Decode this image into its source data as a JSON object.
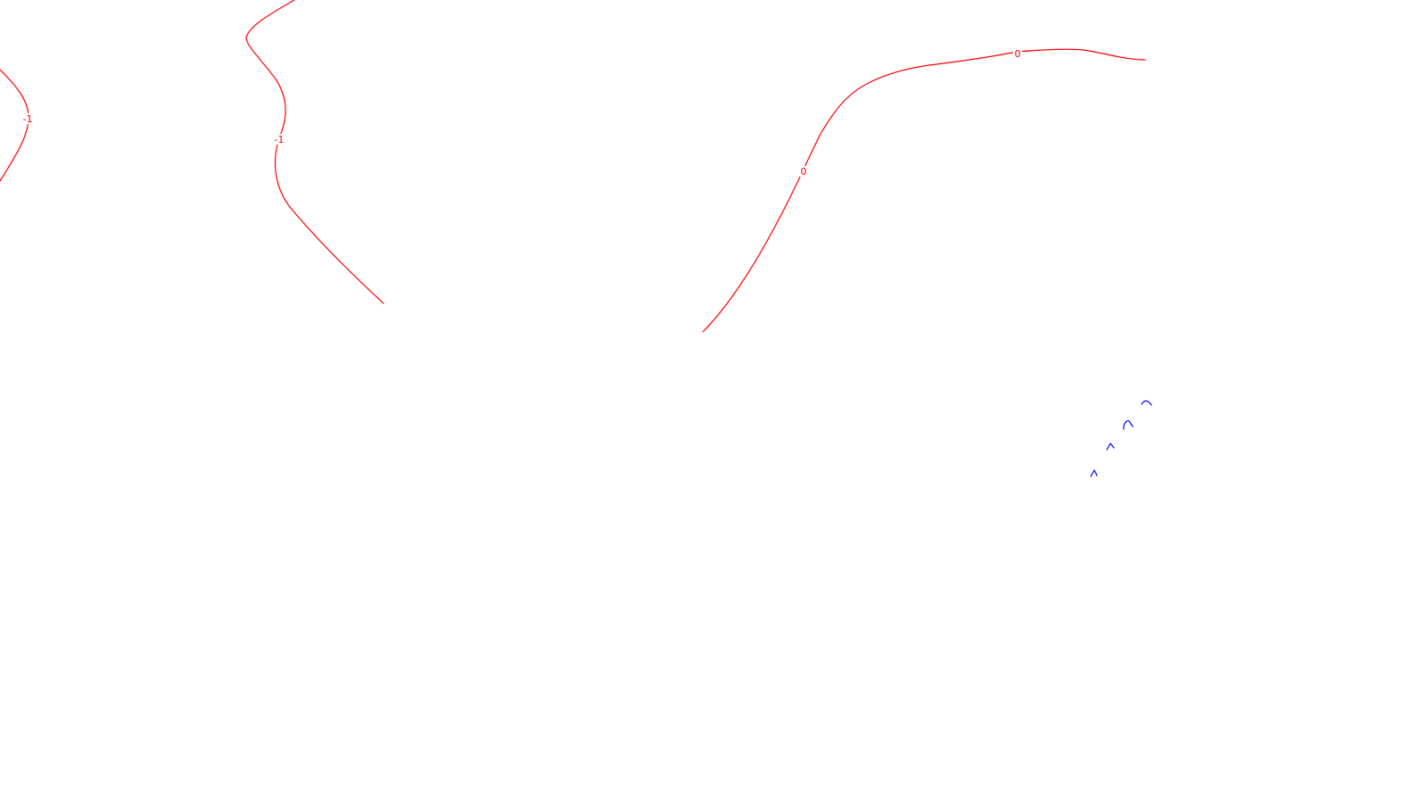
{
  "map": {
    "background": "#ffffff",
    "contour_color": "#ff0000",
    "vector_color": "#0000ff",
    "contour_labels": {
      "left_edge": "-1",
      "upper_left": "-1",
      "center": "0",
      "upper_right": "0"
    },
    "vector_marks": [
      "flow-arrow",
      "flow-arrow",
      "flow-arrow",
      "flow-arrow"
    ]
  }
}
